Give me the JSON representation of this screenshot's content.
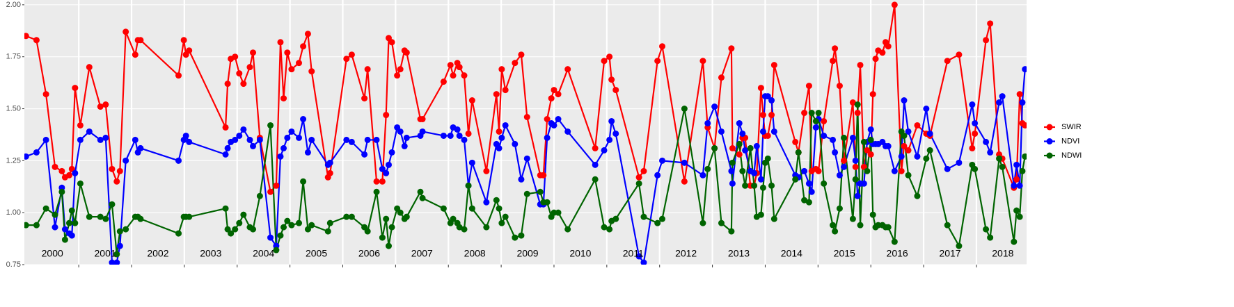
{
  "chart_data": {
    "type": "line",
    "x": [
      2000.0,
      2000.2,
      2000.38,
      2000.55,
      2000.68,
      2000.74,
      2000.82,
      2000.87,
      2000.93,
      2001.03,
      2001.2,
      2001.41,
      2001.51,
      2001.63,
      2001.72,
      2001.78,
      2001.89,
      2002.07,
      2002.12,
      2002.17,
      2002.89,
      2002.99,
      2003.03,
      2003.09,
      2003.78,
      2003.82,
      2003.88,
      2003.96,
      2004.04,
      2004.12,
      2004.24,
      2004.3,
      2004.43,
      2004.63,
      2004.74,
      2004.82,
      2004.88,
      2004.95,
      2005.03,
      2005.17,
      2005.25,
      2005.34,
      2005.41,
      2005.72,
      2005.76,
      2006.07,
      2006.17,
      2006.41,
      2006.47,
      2006.64,
      2006.75,
      2006.82,
      2006.87,
      2006.93,
      2007.03,
      2007.09,
      2007.17,
      2007.21,
      2007.47,
      2007.51,
      2007.91,
      2008.04,
      2008.09,
      2008.17,
      2008.21,
      2008.3,
      2008.38,
      2008.45,
      2008.72,
      2008.91,
      2008.96,
      2009.01,
      2009.08,
      2009.26,
      2009.38,
      2009.49,
      2009.74,
      2009.8,
      2009.87,
      2009.95,
      2010.0,
      2010.08,
      2010.26,
      2010.78,
      2010.95,
      2011.05,
      2011.09,
      2011.17,
      2011.61,
      2011.7,
      2011.96,
      2012.05,
      2012.47,
      2012.82,
      2012.91,
      2013.04,
      2013.17,
      2013.36,
      2013.38,
      2013.51,
      2013.57,
      2013.62,
      2013.72,
      2013.79,
      2013.84,
      2013.92,
      2013.96,
      2014.0,
      2014.05,
      2014.12,
      2014.17,
      2014.57,
      2014.63,
      2014.74,
      2014.83,
      2014.88,
      2014.96,
      2015.01,
      2015.11,
      2015.28,
      2015.32,
      2015.41,
      2015.49,
      2015.66,
      2015.71,
      2015.75,
      2015.8,
      2015.87,
      2015.93,
      2016.0,
      2016.04,
      2016.09,
      2016.14,
      2016.22,
      2016.28,
      2016.33,
      2016.45,
      2016.58,
      2016.63,
      2016.71,
      2016.88,
      2017.05,
      2017.12,
      2017.45,
      2017.67,
      2017.92,
      2017.97,
      2018.18,
      2018.26,
      2018.43,
      2018.49,
      2018.71,
      2018.76,
      2018.82,
      2018.87,
      2018.92
    ],
    "series": [
      {
        "name": "SWIR",
        "color": "#ff0000",
        "values": [
          1.85,
          1.83,
          1.57,
          1.22,
          1.2,
          1.17,
          1.18,
          1.21,
          1.6,
          1.42,
          1.7,
          1.51,
          1.52,
          1.21,
          1.15,
          1.2,
          1.87,
          1.76,
          1.83,
          1.83,
          1.66,
          1.83,
          1.76,
          1.78,
          1.41,
          1.62,
          1.74,
          1.75,
          1.67,
          1.62,
          1.7,
          1.77,
          1.36,
          1.1,
          1.13,
          1.82,
          1.55,
          1.77,
          1.69,
          1.72,
          1.8,
          1.86,
          1.68,
          1.17,
          1.19,
          1.74,
          1.76,
          1.55,
          1.69,
          1.15,
          1.15,
          1.47,
          1.84,
          1.82,
          1.66,
          1.69,
          1.78,
          1.77,
          1.45,
          1.45,
          1.63,
          1.71,
          1.66,
          1.72,
          1.7,
          1.66,
          1.38,
          1.54,
          1.2,
          1.57,
          1.39,
          1.69,
          1.59,
          1.72,
          1.76,
          1.46,
          1.18,
          1.18,
          1.45,
          1.55,
          1.59,
          1.57,
          1.69,
          1.31,
          1.73,
          1.75,
          1.64,
          1.59,
          1.17,
          1.2,
          1.73,
          1.8,
          1.15,
          1.73,
          1.41,
          1.31,
          1.65,
          1.79,
          1.31,
          1.28,
          1.36,
          1.36,
          1.13,
          1.13,
          1.19,
          1.6,
          1.47,
          1.37,
          1.37,
          1.47,
          1.71,
          1.34,
          1.29,
          1.48,
          1.61,
          1.2,
          1.21,
          1.2,
          1.44,
          1.73,
          1.79,
          1.61,
          1.25,
          1.53,
          1.22,
          1.48,
          1.71,
          1.22,
          1.3,
          1.28,
          1.57,
          1.74,
          1.78,
          1.77,
          1.82,
          1.8,
          2.0,
          1.2,
          1.32,
          1.3,
          1.42,
          1.38,
          1.37,
          1.73,
          1.76,
          1.31,
          1.38,
          1.83,
          1.91,
          1.28,
          1.26,
          1.12,
          1.16,
          1.57,
          1.43,
          1.42
        ]
      },
      {
        "name": "NDVI",
        "color": "#0000ff",
        "values": [
          1.27,
          1.29,
          1.35,
          0.93,
          1.12,
          0.92,
          0.9,
          0.89,
          1.19,
          1.35,
          1.39,
          1.35,
          1.36,
          0.76,
          0.76,
          0.84,
          1.25,
          1.35,
          1.29,
          1.31,
          1.25,
          1.35,
          1.37,
          1.34,
          1.28,
          1.31,
          1.34,
          1.35,
          1.37,
          1.4,
          1.35,
          1.32,
          1.35,
          0.88,
          0.84,
          1.27,
          1.31,
          1.36,
          1.39,
          1.36,
          1.45,
          1.29,
          1.35,
          1.23,
          1.24,
          1.35,
          1.34,
          1.28,
          1.35,
          1.35,
          1.21,
          1.19,
          1.23,
          1.29,
          1.41,
          1.39,
          1.32,
          1.36,
          1.37,
          1.39,
          1.37,
          1.37,
          1.41,
          1.4,
          1.37,
          1.35,
          1.13,
          1.24,
          1.05,
          1.33,
          1.31,
          1.36,
          1.42,
          1.33,
          1.16,
          1.26,
          1.04,
          1.04,
          1.36,
          1.43,
          1.42,
          1.45,
          1.39,
          1.23,
          1.3,
          1.35,
          1.44,
          1.38,
          0.79,
          0.76,
          1.18,
          1.25,
          1.24,
          1.18,
          1.43,
          1.51,
          1.39,
          1.2,
          1.14,
          1.43,
          1.38,
          1.3,
          1.2,
          1.19,
          1.32,
          1.16,
          1.39,
          1.56,
          1.56,
          1.54,
          1.39,
          1.18,
          1.17,
          1.2,
          1.14,
          1.1,
          1.41,
          1.45,
          1.37,
          1.35,
          1.29,
          1.18,
          1.22,
          1.36,
          1.25,
          1.08,
          1.14,
          1.14,
          1.34,
          1.4,
          1.33,
          1.33,
          1.33,
          1.34,
          1.32,
          1.32,
          1.2,
          1.27,
          1.54,
          1.39,
          1.27,
          1.5,
          1.38,
          1.21,
          1.24,
          1.52,
          1.43,
          1.34,
          1.29,
          1.53,
          1.56,
          1.13,
          1.23,
          1.13,
          1.53,
          1.69
        ]
      },
      {
        "name": "NDWI",
        "color": "#006400",
        "values": [
          0.94,
          0.94,
          1.02,
          0.99,
          1.1,
          0.87,
          0.95,
          1.01,
          0.95,
          1.14,
          0.98,
          0.98,
          0.97,
          1.04,
          0.8,
          0.91,
          0.92,
          0.98,
          0.98,
          0.97,
          0.9,
          0.98,
          0.98,
          0.98,
          1.02,
          0.92,
          0.9,
          0.92,
          0.95,
          0.99,
          0.93,
          0.92,
          1.08,
          1.42,
          0.82,
          0.89,
          0.93,
          0.96,
          0.94,
          0.95,
          1.15,
          0.92,
          0.94,
          0.91,
          0.95,
          0.98,
          0.98,
          0.93,
          0.91,
          1.1,
          0.88,
          0.97,
          0.84,
          0.93,
          1.02,
          1.0,
          0.97,
          0.98,
          1.1,
          1.07,
          1.02,
          0.95,
          0.97,
          0.95,
          0.93,
          0.92,
          1.13,
          1.02,
          0.93,
          1.06,
          1.02,
          0.95,
          0.98,
          0.88,
          0.89,
          1.09,
          1.1,
          1.05,
          1.05,
          0.98,
          1.0,
          1.0,
          0.92,
          1.16,
          0.93,
          0.92,
          0.96,
          0.97,
          1.14,
          0.98,
          0.95,
          0.97,
          1.5,
          0.95,
          1.21,
          1.31,
          0.95,
          0.91,
          1.24,
          1.33,
          1.2,
          1.13,
          1.31,
          1.13,
          0.98,
          0.99,
          1.12,
          1.24,
          1.26,
          1.13,
          0.97,
          1.16,
          1.29,
          1.06,
          1.05,
          1.48,
          1.44,
          1.48,
          1.14,
          0.94,
          0.91,
          1.02,
          1.36,
          0.97,
          1.16,
          1.52,
          0.94,
          1.34,
          1.2,
          1.35,
          0.99,
          0.93,
          0.94,
          0.94,
          0.93,
          0.93,
          0.86,
          1.39,
          1.37,
          1.18,
          1.08,
          1.26,
          1.3,
          0.94,
          0.84,
          1.23,
          1.21,
          0.92,
          0.88,
          1.26,
          1.22,
          0.86,
          1.01,
          0.98,
          1.2,
          1.27
        ]
      }
    ],
    "xlim": [
      1999.97,
      2018.95
    ],
    "xticks": [
      2001,
      2002,
      2003,
      2004,
      2005,
      2006,
      2007,
      2008,
      2009,
      2010,
      2011,
      2012,
      2013,
      2014,
      2015,
      2016,
      2017,
      2018
    ],
    "annotations": [
      {
        "value": 2000.5,
        "label": "2000"
      },
      {
        "value": 2001.5,
        "label": "2001"
      },
      {
        "value": 2002.5,
        "label": "2002"
      },
      {
        "value": 2003.5,
        "label": "2003"
      },
      {
        "value": 2004.5,
        "label": "2004"
      },
      {
        "value": 2005.5,
        "label": "2005"
      },
      {
        "value": 2006.5,
        "label": "2006"
      },
      {
        "value": 2007.5,
        "label": "2007"
      },
      {
        "value": 2008.5,
        "label": "2008"
      },
      {
        "value": 2009.5,
        "label": "2009"
      },
      {
        "value": 2010.5,
        "label": "2010"
      },
      {
        "value": 2011.5,
        "label": "2011"
      },
      {
        "value": 2012.5,
        "label": "2012"
      },
      {
        "value": 2013.5,
        "label": "2013"
      },
      {
        "value": 2014.5,
        "label": "2014"
      },
      {
        "value": 2015.5,
        "label": "2015"
      },
      {
        "value": 2016.5,
        "label": "2016"
      },
      {
        "value": 2017.5,
        "label": "2017"
      },
      {
        "value": 2018.5,
        "label": "2018"
      }
    ],
    "ylim": [
      0.75,
      2.023
    ],
    "yticks": [
      {
        "value": 0.75,
        "label": "0.75"
      },
      {
        "value": 1.0,
        "label": "1.00"
      },
      {
        "value": 1.25,
        "label": "1.25"
      },
      {
        "value": 1.5,
        "label": "1.50"
      },
      {
        "value": 1.75,
        "label": "1.75"
      },
      {
        "value": 2.0,
        "label": "2.00"
      }
    ],
    "grid": true,
    "legend": "right"
  }
}
